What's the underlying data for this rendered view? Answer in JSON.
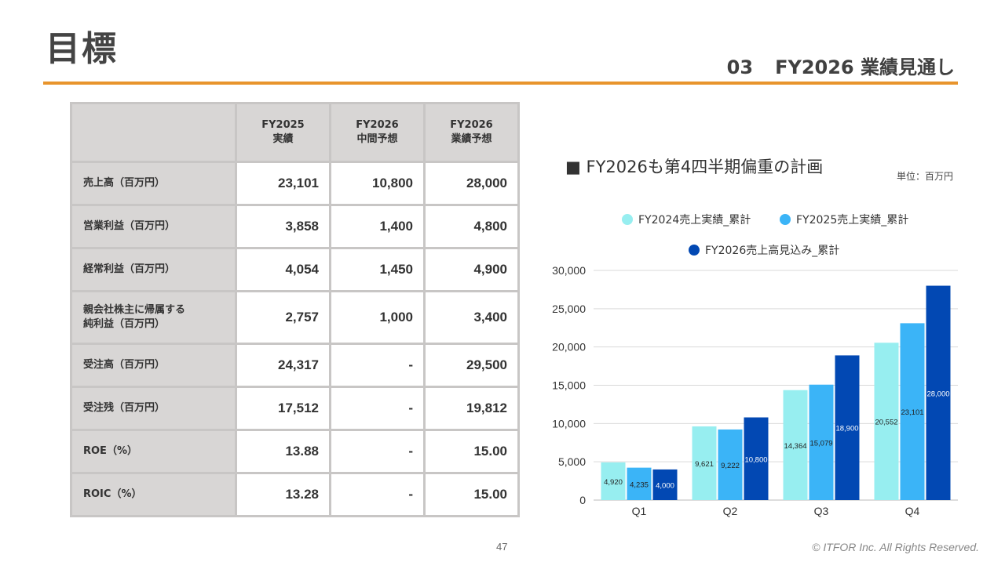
{
  "header": {
    "title": "目標",
    "section_number": "03",
    "section_title": "FY2026 業績見通し"
  },
  "table": {
    "columns": [
      [
        "FY2025",
        "実績"
      ],
      [
        "FY2026",
        "中間予想"
      ],
      [
        "FY2026",
        "業績予想"
      ]
    ],
    "rows": [
      {
        "label": [
          "売上高（百万円）"
        ],
        "values": [
          "23,101",
          "10,800",
          "28,000"
        ]
      },
      {
        "label": [
          "営業利益（百万円）"
        ],
        "values": [
          "3,858",
          "1,400",
          "4,800"
        ]
      },
      {
        "label": [
          "経常利益（百万円）"
        ],
        "values": [
          "4,054",
          "1,450",
          "4,900"
        ]
      },
      {
        "label": [
          "親会社株主に帰属する",
          "純利益（百万円）"
        ],
        "values": [
          "2,757",
          "1,000",
          "3,400"
        ]
      },
      {
        "label": [
          "受注高（百万円）"
        ],
        "values": [
          "24,317",
          "-",
          "29,500"
        ]
      },
      {
        "label": [
          "受注残（百万円）"
        ],
        "values": [
          "17,512",
          "-",
          "19,812"
        ]
      },
      {
        "label": [
          "ROE（%）"
        ],
        "values": [
          "13.88",
          "-",
          "15.00"
        ]
      },
      {
        "label": [
          "ROIC（%）"
        ],
        "values": [
          "13.28",
          "-",
          "15.00"
        ]
      }
    ]
  },
  "chart_title": "■ FY2026も第4四半期偏重の計画",
  "unit_label": "単位：百万円",
  "chart_data": {
    "type": "bar",
    "categories": [
      "Q1",
      "Q2",
      "Q3",
      "Q4"
    ],
    "series": [
      {
        "name": "FY2024売上実績_累計",
        "values": [
          4920,
          9621,
          14364,
          20552
        ],
        "labels": [
          "4,920",
          "9,621",
          "14,364",
          "20,552"
        ],
        "color": "#97eef0"
      },
      {
        "name": "FY2025売上実績_累計",
        "values": [
          4235,
          9222,
          15079,
          23101
        ],
        "labels": [
          "4,235",
          "9,222",
          "15,079",
          "23,101"
        ],
        "color": "#3bb4f7"
      },
      {
        "name": "FY2026売上高見込み_累計",
        "values": [
          4000,
          10800,
          18900,
          28000
        ],
        "labels": [
          "4,000",
          "10,800",
          "18,900",
          "28,000"
        ],
        "color": "#0248b3"
      }
    ],
    "ylim": [
      0,
      30000
    ],
    "yticks": [
      "0",
      "5,000",
      "10,000",
      "15,000",
      "20,000",
      "25,000",
      "30,000"
    ],
    "grid": true,
    "legend_position": "top"
  },
  "footer": {
    "page_number": "47",
    "copyright": "© ITFOR Inc. All Rights Reserved."
  }
}
